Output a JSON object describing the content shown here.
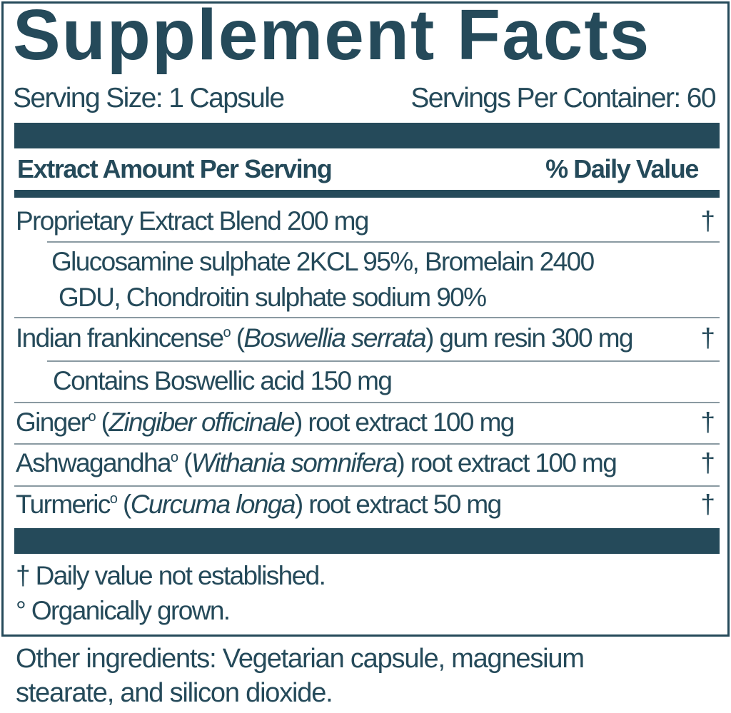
{
  "title": "Supplement Facts",
  "serving_size": "Serving Size: 1 Capsule",
  "servings_per_container": "Servings Per Container: 60",
  "header": {
    "amount": "Extract Amount Per Serving",
    "dv": "% Daily Value"
  },
  "rows": [
    {
      "name": "Proprietary Extract Blend 200 mg",
      "dv": "†"
    },
    {
      "line1": "Glucosamine sulphate 2KCL 95%, Bromelain 2400",
      "line2": "GDU, Chondroitin sulphate sodium 90%"
    },
    {
      "name": "Indian frankincense",
      "mark": "o",
      "latin": "Boswellia serrata",
      "rest": ") gum  resin 300 mg",
      "dv": "†"
    },
    {
      "name": "Contains Boswellic acid 150 mg"
    },
    {
      "name": "Ginger",
      "mark": "o",
      "latin": "Zingiber officinale",
      "rest": ") root extract 100 mg",
      "dv": "†"
    },
    {
      "name": "Ashwagandha",
      "mark": "o",
      "latin": "Withania somnifera",
      "rest": ") root extract 100 mg",
      "dv": "†"
    },
    {
      "name": "Turmeric",
      "mark": "o",
      "latin": "Curcuma longa",
      "rest": ") root extract 50 mg",
      "dv": "†"
    }
  ],
  "footnotes": [
    "† Daily value not established.",
    "° Organically grown."
  ],
  "other_ingredients": [
    "Other ingredients: Vegetarian capsule, magnesium",
    "stearate, and silicon dioxide."
  ],
  "colors": {
    "primary": "#254a5a"
  }
}
